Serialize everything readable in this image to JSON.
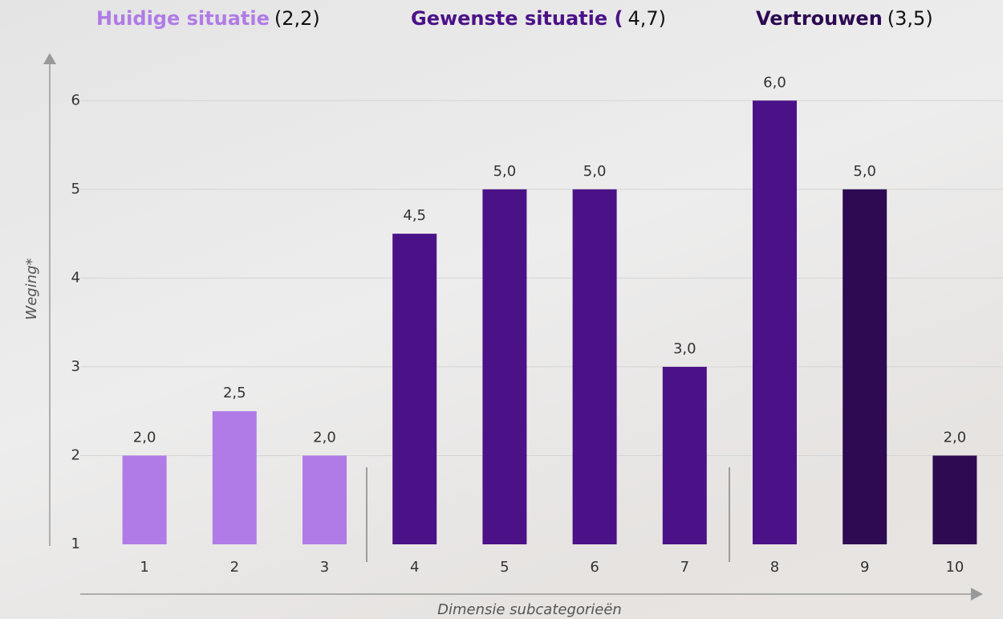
{
  "chart_data": {
    "type": "bar",
    "groups": [
      {
        "name": "Huidige situatie",
        "score": "(2,2)",
        "color": "#b07be6"
      },
      {
        "name": "Gewenste situatie (",
        "score": "4,7)",
        "color": "#4b1288"
      },
      {
        "name": "Vertrouwen",
        "score": "(3,5)",
        "color": "#2d0a52"
      }
    ],
    "categories": [
      "1",
      "2",
      "3",
      "4",
      "5",
      "6",
      "7",
      "8",
      "9",
      "10"
    ],
    "values": [
      2,
      2.5,
      2,
      4.5,
      5,
      5,
      3,
      6,
      5,
      2
    ],
    "value_labels": [
      "2,0",
      "2,5",
      "2,0",
      "4,5",
      "5,0",
      "5,0",
      "3,0",
      "6,0",
      "5,0",
      "2,0"
    ],
    "colors": [
      "#b07be6",
      "#b07be6",
      "#b07be6",
      "#4b1288",
      "#4b1288",
      "#4b1288",
      "#4b1288",
      "#4b1288",
      "#2d0a52",
      "#2d0a52"
    ],
    "ylim": [
      1,
      6.5
    ],
    "yticks": [
      1,
      2,
      3,
      4,
      5,
      6
    ],
    "grid": true,
    "y_label": "Weging*",
    "x_label": "Dimensie subcategorieën"
  }
}
